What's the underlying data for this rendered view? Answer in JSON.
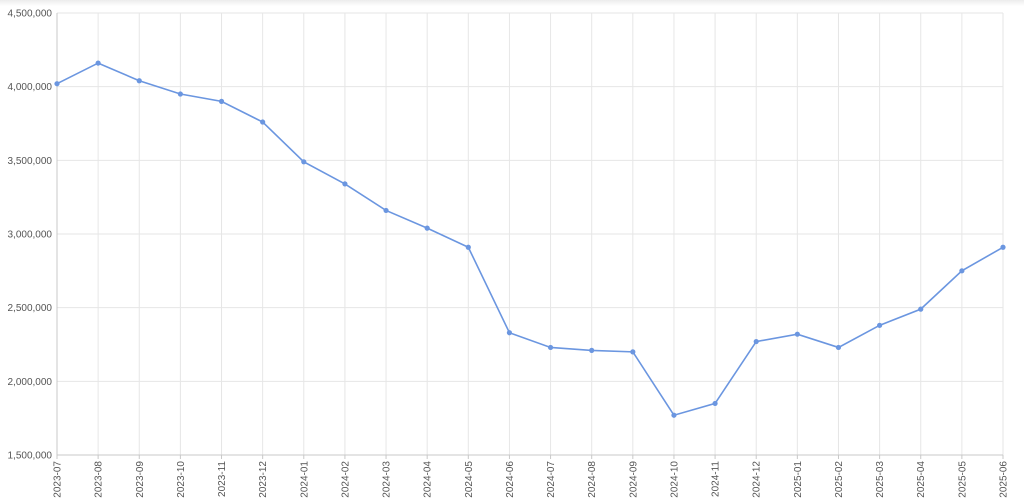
{
  "chart_data": {
    "type": "line",
    "title": "",
    "xlabel": "",
    "ylabel": "",
    "ylim": [
      1500000,
      4500000
    ],
    "yticks": [
      "1,500,000",
      "2,000,000",
      "2,500,000",
      "3,000,000",
      "3,500,000",
      "4,000,000",
      "4,500,000"
    ],
    "ytick_values": [
      1500000,
      2000000,
      2500000,
      3000000,
      3500000,
      4000000,
      4500000
    ],
    "grid": true,
    "legend": "none",
    "categories": [
      "2023-07",
      "2023-08",
      "2023-09",
      "2023-10",
      "2023-11",
      "2023-12",
      "2024-01",
      "2024-02",
      "2024-03",
      "2024-04",
      "2024-05",
      "2024-06",
      "2024-07",
      "2024-08",
      "2024-09",
      "2024-10",
      "2024-11",
      "2024-12",
      "2025-01",
      "2025-02",
      "2025-03",
      "2025-04",
      "2025-05",
      "2025-06"
    ],
    "series": [
      {
        "color": "#6b96e0",
        "values": [
          4020000,
          4160000,
          4040000,
          3950000,
          3900000,
          3760000,
          3490000,
          3340000,
          3160000,
          3040000,
          2910000,
          2330000,
          2230000,
          2210000,
          2200000,
          1770000,
          1850000,
          2270000,
          2320000,
          2230000,
          2380000,
          2490000,
          2750000,
          2910000
        ]
      }
    ]
  }
}
